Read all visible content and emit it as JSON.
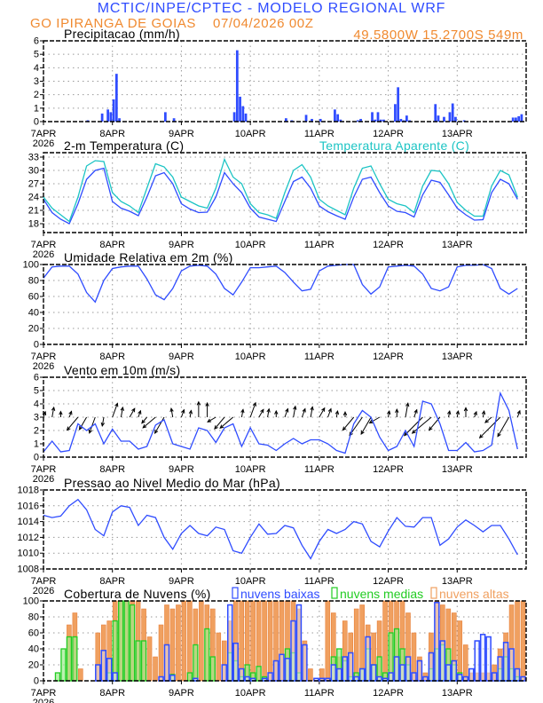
{
  "header": {
    "title": "MCTIC/INPE/CPTEC - MODELO REGIONAL WRF",
    "station": "GO IPIRANGA DE GOIAS",
    "run": "07/04/2026 00Z",
    "location": "49.5800W 15.2700S 549m"
  },
  "colors": {
    "title_blue": "#2f4cff",
    "orange": "#f08a30",
    "series_blue": "#2f4cff",
    "apparent_cyan": "#1cc4c4",
    "high_clouds": "#f0a060",
    "mid_clouds": "#22cc22",
    "low_clouds": "#2f4cff"
  },
  "x_axis": {
    "labels": [
      "7APR",
      "8APR",
      "9APR",
      "10APR",
      "11APR",
      "12APR",
      "13APR"
    ],
    "year": "2026",
    "time_start": "07/04/2026 00Z"
  },
  "chart_data": [
    {
      "type": "bar",
      "title": "Precipitacao (mm/h)",
      "ylim": [
        0,
        6
      ],
      "yticks": [
        "0",
        "1",
        "2",
        "3",
        "4",
        "5",
        "6"
      ],
      "grid": true,
      "points": [
        [
          "07APR 15Z",
          0.1
        ],
        [
          "07APR 20Z",
          0.6
        ],
        [
          "07APR 22Z",
          0.9
        ],
        [
          "07APR 23Z",
          0.7
        ],
        [
          "08APR 00Z",
          1.65
        ],
        [
          "08APR 01Z",
          3.55
        ],
        [
          "08APR 02Z",
          0.25
        ],
        [
          "08APR 18Z",
          0.7
        ],
        [
          "08APR 21Z",
          0.25
        ],
        [
          "09APR 18Z",
          0.7
        ],
        [
          "09APR 19Z",
          5.3
        ],
        [
          "09APR 20Z",
          1.85
        ],
        [
          "09APR 21Z",
          1.15
        ],
        [
          "09APR 22Z",
          0.6
        ],
        [
          "10APR 12Z",
          0.25
        ],
        [
          "10APR 14Z",
          0.1
        ],
        [
          "10APR 19Z",
          0.5
        ],
        [
          "10APR 21Z",
          0.2
        ],
        [
          "11APR 00Z",
          0.2
        ],
        [
          "11APR 05Z",
          0.9
        ],
        [
          "11APR 06Z",
          0.55
        ],
        [
          "11APR 07Z",
          0.15
        ],
        [
          "11APR 13Z",
          0.1
        ],
        [
          "11APR 14Z",
          0.2
        ],
        [
          "11APR 18Z",
          0.7
        ],
        [
          "11APR 19Z",
          0.15
        ],
        [
          "11APR 20Z",
          0.7
        ],
        [
          "11APR 21Z",
          0.15
        ],
        [
          "11APR 22Z",
          0.15
        ],
        [
          "12APR 02Z",
          1.3
        ],
        [
          "12APR 03Z",
          2.55
        ],
        [
          "12APR 04Z",
          0.2
        ],
        [
          "12APR 05Z",
          0.1
        ],
        [
          "12APR 06Z",
          0.45
        ],
        [
          "12APR 07Z",
          0.1
        ],
        [
          "12APR 16Z",
          1.3
        ],
        [
          "12APR 17Z",
          0.45
        ],
        [
          "12APR 19Z",
          0.35
        ],
        [
          "12APR 21Z",
          0.7
        ],
        [
          "12APR 22Z",
          1.35
        ],
        [
          "12APR 23Z",
          0.35
        ],
        [
          "13APR 02Z",
          0.1
        ],
        [
          "13APR 19Z",
          0.3
        ],
        [
          "13APR 20Z",
          0.3
        ],
        [
          "13APR 21Z",
          0.4
        ],
        [
          "13APR 22Z",
          0.55
        ]
      ]
    },
    {
      "type": "line",
      "title": "2-m Temperatura (C)",
      "ylim": [
        16,
        34
      ],
      "yticks": [
        "18",
        "21",
        "24",
        "27",
        "30",
        "33"
      ],
      "grid": true,
      "time_step": "3h",
      "series": [
        {
          "name": "",
          "color": "#2f4cff",
          "values": [
            23.5,
            20.5,
            19,
            18,
            22.5,
            28,
            30,
            30.5,
            23,
            21.5,
            20.8,
            19.8,
            24,
            28.8,
            29.5,
            27,
            22.5,
            21.3,
            20.5,
            20.6,
            24,
            29.5,
            27,
            25,
            21.5,
            19.5,
            19,
            18.5,
            23,
            27.5,
            28.5,
            26,
            22,
            20.7,
            19.8,
            19,
            24,
            28,
            28.5,
            25,
            22,
            20.8,
            20.5,
            19.5,
            24.5,
            27.8,
            27.3,
            24.5,
            21.5,
            20,
            18.8,
            18.9,
            25,
            28,
            27,
            23.5
          ]
        },
        {
          "name": "Temperatura Aparente (C)",
          "color": "#1cc4c4",
          "values": [
            24,
            21.5,
            20,
            18.5,
            24,
            31,
            32.2,
            32,
            25,
            23,
            22,
            20.5,
            26,
            31.5,
            30.8,
            28.5,
            24,
            23,
            22,
            21.5,
            26,
            32.5,
            28.5,
            27,
            22.5,
            20.5,
            20,
            19.2,
            25,
            30,
            31.3,
            28.5,
            23.5,
            22,
            21,
            20,
            26,
            30.5,
            31,
            27,
            23.5,
            22.5,
            22,
            20.5,
            26.5,
            30,
            29.8,
            27,
            22.8,
            21,
            19.7,
            19.7,
            26.5,
            30,
            29,
            24
          ]
        }
      ]
    },
    {
      "type": "line",
      "title": "Umidade Relativa em 2m (%)",
      "ylim": [
        0,
        100
      ],
      "yticks": [
        "0",
        "20",
        "40",
        "60",
        "80",
        "100"
      ],
      "grid": true,
      "time_step": "3h",
      "series": [
        {
          "name": "",
          "color": "#2f4cff",
          "values": [
            83,
            97,
            98,
            98,
            88,
            65,
            53,
            80,
            95,
            97,
            98,
            98,
            82,
            62,
            56,
            70,
            92,
            98,
            99,
            98,
            88,
            70,
            62,
            78,
            96,
            96,
            97,
            98,
            90,
            78,
            67,
            69,
            92,
            98,
            99,
            100,
            100,
            75,
            63,
            72,
            97,
            98,
            99,
            98,
            88,
            70,
            67,
            72,
            97,
            99,
            99,
            100,
            95,
            70,
            63,
            70
          ]
        }
      ]
    },
    {
      "type": "line",
      "title": "Vento em 10m (m/s)",
      "ylim": [
        0,
        6
      ],
      "yticks": [
        "0",
        "1",
        "2",
        "3",
        "4",
        "5",
        "6"
      ],
      "grid": true,
      "time_step": "3h",
      "series": [
        {
          "name": "",
          "color": "#2f4cff",
          "values": [
            0.4,
            1.2,
            0.4,
            0.5,
            2.5,
            2.0,
            2.5,
            1.0,
            2.1,
            1.2,
            1.2,
            0.6,
            0.8,
            2.4,
            2.8,
            1.0,
            0.8,
            0.6,
            2.2,
            2.0,
            1.1,
            2.2,
            2.5,
            0.8,
            2.2,
            1.0,
            0.9,
            0.5,
            1.0,
            1.4,
            1.0,
            1.3,
            1.3,
            1.0,
            0.5,
            0.3,
            2.5,
            3.5,
            3.0,
            1.5,
            0.5,
            0.8,
            2.0,
            0.8,
            4.2,
            4.0,
            2.5,
            0.5,
            0.5,
            1.1,
            0.4,
            0.5,
            0.9,
            4.8,
            3.5,
            0.6
          ]
        }
      ],
      "wind_direction_deg": [
        200,
        190,
        180,
        200,
        40,
        30,
        20,
        10,
        200,
        190,
        210,
        200,
        40,
        50,
        30,
        170,
        200,
        190,
        180,
        180,
        60,
        40,
        50,
        190,
        200,
        210,
        190,
        180,
        200,
        190,
        200,
        190,
        210,
        200,
        190,
        180,
        40,
        35,
        30,
        60,
        190,
        180,
        190,
        200,
        45,
        50,
        40,
        190,
        190,
        180,
        200,
        190,
        50,
        45,
        30,
        200
      ]
    },
    {
      "type": "line",
      "title": "Pressao ao Nivel Medio do Mar (hPa)",
      "ylim": [
        1008,
        1018
      ],
      "yticks": [
        "1008",
        "1010",
        "1012",
        "1014",
        "1016",
        "1018"
      ],
      "grid": true,
      "time_step": "3h",
      "series": [
        {
          "name": "",
          "color": "#2f4cff",
          "values": [
            1014.8,
            1014.5,
            1014.7,
            1016,
            1016.8,
            1015.5,
            1013,
            1012.2,
            1015.2,
            1016,
            1015.8,
            1013.5,
            1014.8,
            1014.5,
            1012,
            1010.5,
            1012.5,
            1013.5,
            1012.5,
            1012.2,
            1013.3,
            1013,
            1010.3,
            1010,
            1012,
            1013.7,
            1012.4,
            1012.5,
            1013.5,
            1013.2,
            1011,
            1009.3,
            1011.5,
            1013,
            1012.5,
            1013,
            1014,
            1013.7,
            1011.5,
            1010.8,
            1012.8,
            1014.5,
            1013.4,
            1013.3,
            1014.5,
            1014.5,
            1011,
            1011.8,
            1013.3,
            1014.2,
            1013.5,
            1012.7,
            1013.5,
            1013.5,
            1011.8,
            1009.8
          ]
        }
      ]
    },
    {
      "type": "bar",
      "title": "Cobertura de Nuvens (%)",
      "ylim": [
        0,
        100
      ],
      "yticks": [
        "0",
        "20",
        "40",
        "60",
        "80",
        "100"
      ],
      "grid": true,
      "time_step": "2h",
      "legend_position": "top",
      "series": [
        {
          "name": "nuvens altas",
          "color": "#f0a060",
          "values": [
            0,
            0,
            0,
            0,
            70,
            85,
            15,
            0,
            0,
            60,
            70,
            75,
            100,
            100,
            100,
            100,
            100,
            90,
            55,
            30,
            70,
            95,
            90,
            95,
            100,
            100,
            90,
            100,
            95,
            90,
            60,
            50,
            75,
            100,
            100,
            100,
            100,
            100,
            100,
            100,
            100,
            100,
            100,
            100,
            90,
            50,
            15,
            0,
            15,
            100,
            85,
            30,
            75,
            60,
            90,
            95,
            70,
            60,
            75,
            100,
            100,
            100,
            100,
            85,
            60,
            30,
            10,
            60,
            100,
            95,
            90,
            85,
            75,
            45,
            10,
            10,
            10,
            10,
            20,
            40,
            60,
            95,
            100,
            100
          ]
        },
        {
          "name": "nuvens medias",
          "color": "#22cc22",
          "values": [
            0,
            0,
            10,
            40,
            55,
            55,
            0,
            0,
            0,
            0,
            0,
            10,
            75,
            100,
            100,
            95,
            50,
            50,
            0,
            0,
            0,
            0,
            8,
            0,
            0,
            10,
            45,
            0,
            65,
            30,
            0,
            0,
            35,
            25,
            5,
            20,
            10,
            18,
            5,
            0,
            0,
            0,
            40,
            35,
            10,
            0,
            0,
            0,
            0,
            0,
            30,
            40,
            25,
            5,
            10,
            15,
            40,
            20,
            30,
            10,
            60,
            65,
            40,
            20,
            0,
            0,
            0,
            15,
            40,
            45,
            40,
            20,
            10,
            0,
            0,
            0,
            0,
            0,
            0,
            15,
            30,
            15,
            5,
            0
          ]
        },
        {
          "name": "nuvens baixas",
          "color": "#2f4cff",
          "values": [
            0,
            0,
            0,
            0,
            0,
            0,
            0,
            0,
            0,
            20,
            38,
            28,
            10,
            0,
            0,
            0,
            0,
            0,
            0,
            0,
            5,
            45,
            7,
            0,
            0,
            0,
            3,
            0,
            0,
            0,
            0,
            20,
            95,
            47,
            15,
            5,
            3,
            0,
            3,
            10,
            25,
            33,
            28,
            75,
            95,
            45,
            0,
            3,
            3,
            3,
            20,
            15,
            30,
            35,
            5,
            15,
            55,
            20,
            5,
            3,
            10,
            30,
            20,
            30,
            10,
            25,
            5,
            35,
            98,
            50,
            20,
            25,
            8,
            5,
            15,
            50,
            58,
            55,
            10,
            30,
            48,
            40,
            15,
            5
          ]
        }
      ]
    }
  ]
}
